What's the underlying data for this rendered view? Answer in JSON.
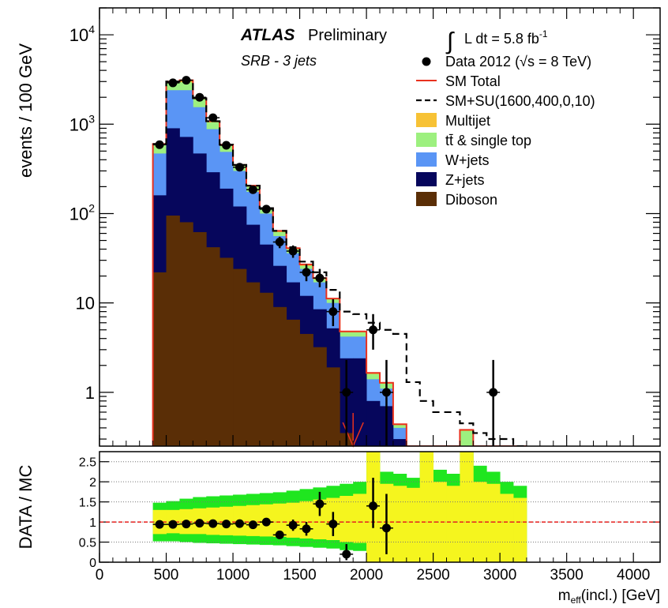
{
  "chart_data": {
    "type": "histogram-ratio",
    "main": {
      "ylabel": "events / 100 GeV",
      "yscale": "log",
      "ylim": [
        0.25,
        20000
      ],
      "yticks": [
        {
          "v": 1,
          "label": "1"
        },
        {
          "v": 10,
          "label": "10"
        },
        {
          "v": 100,
          "label": "10",
          "sup": "2"
        },
        {
          "v": 1000,
          "label": "10",
          "sup": "3"
        },
        {
          "v": 10000,
          "label": "10",
          "sup": "4"
        }
      ],
      "atlas_label": "ATLAS",
      "atlas_suffix": "Preliminary",
      "region_label": "SRB - 3 jets",
      "lumi": {
        "integral": "∫",
        "text": "L dt = 5.8 fb",
        "sup": "-1"
      },
      "legend": [
        {
          "key": "data",
          "label": "Data 2012 (√s = 8 TeV)",
          "style": "marker",
          "color": "#000000"
        },
        {
          "key": "sm",
          "label": "SM Total",
          "style": "line",
          "color": "#e8321e"
        },
        {
          "key": "susy",
          "label": "SM+SU(1600,400,0,10)",
          "style": "dashed",
          "color": "#000000"
        },
        {
          "key": "multijet",
          "label": "Multijet",
          "style": "box",
          "color": "#f7c235"
        },
        {
          "key": "ttbar",
          "label": "tt̄ & single top",
          "style": "box",
          "color": "#9df07f"
        },
        {
          "key": "wjets",
          "label": "W+jets",
          "style": "box",
          "color": "#5a95f5"
        },
        {
          "key": "zjets",
          "label": "Z+jets",
          "style": "box",
          "color": "#06065c"
        },
        {
          "key": "diboson",
          "label": "Diboson",
          "style": "box",
          "color": "#5a2e06"
        }
      ],
      "bin_edges_start": 400,
      "bin_width": 100,
      "stack": {
        "diboson": [
          22,
          95,
          80,
          62,
          42,
          32,
          24,
          17,
          13,
          9,
          6.5,
          4.5,
          3.2,
          1.9,
          0.35,
          0.25,
          0.25,
          0.25,
          0.25,
          0.25,
          0.25,
          0.25,
          0.25,
          0.25,
          0.25,
          0.25,
          0.25,
          0.25
        ],
        "zjets": [
          160,
          900,
          720,
          470,
          290,
          190,
          120,
          75,
          45,
          26,
          17,
          12,
          8.5,
          5.2,
          2.4,
          2.4,
          0.8,
          0.7,
          0.3,
          0.25,
          0.25,
          0.25,
          0.25,
          0.25,
          0.25,
          0.25,
          0.25,
          0.25
        ],
        "wjets": [
          470,
          2400,
          2400,
          1550,
          880,
          490,
          300,
          175,
          100,
          56,
          36,
          24,
          17,
          10,
          4.2,
          4.2,
          1.4,
          1.1,
          0.4,
          0.25,
          0.25,
          0.25,
          0.25,
          0.25,
          0.25,
          0.25,
          0.25,
          0.25
        ],
        "ttbar": [
          580,
          2900,
          2950,
          1900,
          1050,
          570,
          340,
          200,
          112,
          62,
          40,
          26,
          18.5,
          11,
          4.7,
          4.7,
          1.6,
          1.25,
          0.43,
          0.25,
          0.25,
          0.25,
          0.25,
          0.37,
          0.25,
          0.25,
          0.25,
          0.25
        ],
        "multijet": [
          600,
          3000,
          3100,
          1950,
          1080,
          590,
          350,
          205,
          115,
          64,
          41,
          27,
          19,
          11.2,
          4.8,
          4.8,
          1.65,
          1.28,
          0.44,
          0.25,
          0.25,
          0.25,
          0.25,
          0.38,
          0.25,
          0.25,
          0.25,
          0.25
        ]
      },
      "susy_total": [
        600,
        3000,
        3100,
        1950,
        1080,
        590,
        350,
        205,
        115,
        64,
        42,
        29,
        22,
        14,
        8,
        7.5,
        6,
        5,
        4.5,
        1.3,
        0.8,
        0.6,
        0.6,
        0.45,
        0.35,
        0.3,
        0.3,
        0.25
      ],
      "data_points": [
        {
          "x": 450,
          "y": 590,
          "lo": 565,
          "hi": 615
        },
        {
          "x": 550,
          "y": 2900,
          "lo": 2850,
          "hi": 2950
        },
        {
          "x": 650,
          "y": 3100,
          "lo": 3040,
          "hi": 3160
        },
        {
          "x": 750,
          "y": 2000,
          "lo": 1955,
          "hi": 2045
        },
        {
          "x": 850,
          "y": 1180,
          "lo": 1145,
          "hi": 1215
        },
        {
          "x": 950,
          "y": 580,
          "lo": 556,
          "hi": 604
        },
        {
          "x": 1050,
          "y": 330,
          "lo": 312,
          "hi": 348
        },
        {
          "x": 1150,
          "y": 185,
          "lo": 172,
          "hi": 198
        },
        {
          "x": 1250,
          "y": 112,
          "lo": 102,
          "hi": 123
        },
        {
          "x": 1350,
          "y": 48,
          "lo": 41,
          "hi": 55
        },
        {
          "x": 1450,
          "y": 38,
          "lo": 32,
          "hi": 44
        },
        {
          "x": 1550,
          "y": 22,
          "lo": 17.5,
          "hi": 27
        },
        {
          "x": 1650,
          "y": 19,
          "lo": 15,
          "hi": 24
        },
        {
          "x": 1750,
          "y": 8,
          "lo": 5.5,
          "hi": 11
        },
        {
          "x": 1850,
          "y": 1,
          "lo": 0.25,
          "hi": 2.3
        },
        {
          "x": 2050,
          "y": 5,
          "lo": 3,
          "hi": 7.5
        },
        {
          "x": 2150,
          "y": 1,
          "lo": 0.25,
          "hi": 2.3
        },
        {
          "x": 2950,
          "y": 1,
          "lo": 0.25,
          "hi": 2.3
        }
      ],
      "cut_arrow_x": 1900
    },
    "ratio": {
      "ylabel": "DATA / MC",
      "ylim": [
        0,
        2.75
      ],
      "yticks": [
        {
          "v": 0,
          "label": "0"
        },
        {
          "v": 0.5,
          "label": "0.5"
        },
        {
          "v": 1,
          "label": "1"
        },
        {
          "v": 1.5,
          "label": "1.5"
        },
        {
          "v": 2,
          "label": "2"
        },
        {
          "v": 2.5,
          "label": "2.5"
        }
      ],
      "band_green": [
        [
          0.52,
          1.48
        ],
        [
          0.52,
          1.52
        ],
        [
          0.5,
          1.58
        ],
        [
          0.48,
          1.62
        ],
        [
          0.47,
          1.64
        ],
        [
          0.46,
          1.66
        ],
        [
          0.45,
          1.68
        ],
        [
          0.44,
          1.7
        ],
        [
          0.43,
          1.72
        ],
        [
          0.42,
          1.74
        ],
        [
          0.4,
          1.78
        ],
        [
          0.38,
          1.82
        ],
        [
          0.36,
          1.86
        ],
        [
          0.34,
          1.9
        ],
        [
          0.3,
          1.95
        ],
        [
          0.28,
          2.0
        ],
        [
          0,
          2.75
        ],
        [
          0,
          2.25
        ],
        [
          0,
          2.2
        ],
        [
          0,
          2.1
        ],
        [
          0,
          2.75
        ],
        [
          0,
          2.3
        ],
        [
          0,
          2.2
        ],
        [
          0,
          2.75
        ],
        [
          0,
          2.4
        ],
        [
          0,
          2.25
        ],
        [
          0,
          2.0
        ],
        [
          0,
          1.9
        ]
      ],
      "band_yellow": [
        [
          0.7,
          1.3
        ],
        [
          0.72,
          1.3
        ],
        [
          0.7,
          1.32
        ],
        [
          0.7,
          1.34
        ],
        [
          0.68,
          1.36
        ],
        [
          0.67,
          1.38
        ],
        [
          0.66,
          1.4
        ],
        [
          0.65,
          1.42
        ],
        [
          0.64,
          1.44
        ],
        [
          0.63,
          1.46
        ],
        [
          0.61,
          1.48
        ],
        [
          0.59,
          1.52
        ],
        [
          0.57,
          1.56
        ],
        [
          0.55,
          1.6
        ],
        [
          0.5,
          1.65
        ],
        [
          0.48,
          1.7
        ],
        [
          0,
          2.75
        ],
        [
          0,
          1.95
        ],
        [
          0,
          1.9
        ],
        [
          0,
          1.85
        ],
        [
          0,
          2.75
        ],
        [
          0,
          2.0
        ],
        [
          0,
          1.9
        ],
        [
          0,
          2.75
        ],
        [
          0,
          2.0
        ],
        [
          0,
          1.95
        ],
        [
          0,
          1.7
        ],
        [
          0,
          1.6
        ]
      ],
      "points": [
        {
          "x": 450,
          "y": 0.94,
          "lo": 0.9,
          "hi": 0.98
        },
        {
          "x": 550,
          "y": 0.94,
          "lo": 0.92,
          "hi": 0.96
        },
        {
          "x": 650,
          "y": 0.95,
          "lo": 0.93,
          "hi": 0.97
        },
        {
          "x": 750,
          "y": 0.97,
          "lo": 0.95,
          "hi": 0.99
        },
        {
          "x": 850,
          "y": 0.96,
          "lo": 0.93,
          "hi": 0.99
        },
        {
          "x": 950,
          "y": 0.95,
          "lo": 0.91,
          "hi": 0.99
        },
        {
          "x": 1050,
          "y": 0.96,
          "lo": 0.9,
          "hi": 1.02
        },
        {
          "x": 1150,
          "y": 0.93,
          "lo": 0.86,
          "hi": 1.0
        },
        {
          "x": 1250,
          "y": 1.0,
          "lo": 0.91,
          "hi": 1.09
        },
        {
          "x": 1350,
          "y": 0.68,
          "lo": 0.58,
          "hi": 0.78
        },
        {
          "x": 1450,
          "y": 0.92,
          "lo": 0.78,
          "hi": 1.06
        },
        {
          "x": 1550,
          "y": 0.83,
          "lo": 0.66,
          "hi": 1.0
        },
        {
          "x": 1650,
          "y": 1.45,
          "lo": 1.15,
          "hi": 1.75
        },
        {
          "x": 1750,
          "y": 0.95,
          "lo": 0.65,
          "hi": 1.25
        },
        {
          "x": 1850,
          "y": 0.2,
          "lo": 0.05,
          "hi": 0.45
        },
        {
          "x": 2050,
          "y": 1.4,
          "lo": 0.85,
          "hi": 2.1
        },
        {
          "x": 2150,
          "y": 0.85,
          "lo": 0.2,
          "hi": 1.7
        }
      ]
    },
    "x": {
      "label": "m",
      "label_sub": "eff",
      "label_rest": "(incl.) [GeV]",
      "xlim": [
        0,
        4200
      ],
      "ticks": [
        0,
        500,
        1000,
        1500,
        2000,
        2500,
        3000,
        3500,
        4000
      ]
    }
  }
}
